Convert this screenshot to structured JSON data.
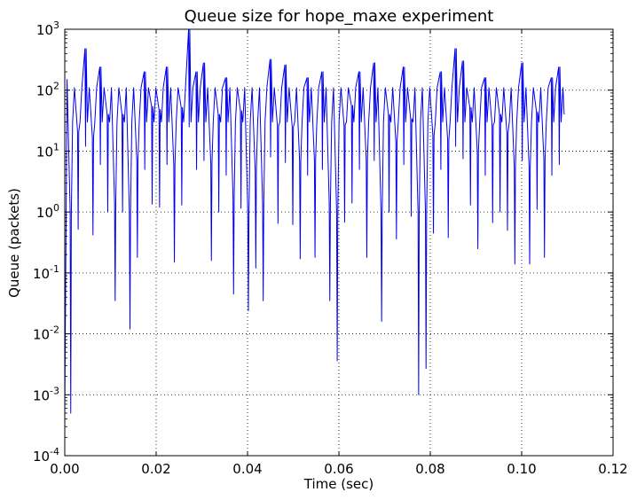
{
  "chart_data": {
    "type": "line",
    "title": "Queue size for hope_maxe experiment",
    "xlabel": "Time (sec)",
    "ylabel": "Queue (packets)",
    "xlim": [
      0,
      0.12
    ],
    "ylim": [
      0.0001,
      1000
    ],
    "yscale": "log",
    "grid": true,
    "line_color": "#0000ee",
    "x_ticks": [
      {
        "value": 0.0,
        "label": "0.00"
      },
      {
        "value": 0.02,
        "label": "0.02"
      },
      {
        "value": 0.04,
        "label": "0.04"
      },
      {
        "value": 0.06,
        "label": "0.06"
      },
      {
        "value": 0.08,
        "label": "0.08"
      },
      {
        "value": 0.1,
        "label": "0.10"
      },
      {
        "value": 0.12,
        "label": "0.12"
      }
    ],
    "y_ticks": [
      {
        "value": 0.0001,
        "base": "10",
        "exp": "-4"
      },
      {
        "value": 0.001,
        "base": "10",
        "exp": "-3"
      },
      {
        "value": 0.01,
        "base": "10",
        "exp": "-2"
      },
      {
        "value": 0.1,
        "base": "10",
        "exp": "-1"
      },
      {
        "value": 1,
        "base": "10",
        "exp": "0"
      },
      {
        "value": 10,
        "base": "10",
        "exp": "1"
      },
      {
        "value": 100,
        "base": "10",
        "exp": "2"
      },
      {
        "value": 1000,
        "base": "10",
        "exp": "3"
      }
    ],
    "series": [
      {
        "x_start": 0.0,
        "x_end": 0.1093,
        "start_value": 0.0005,
        "peak_value": 150,
        "typical_peak": 110,
        "cycle_period": 0.00162,
        "first_peak_time": 0.0005,
        "end_value": 40,
        "minima": [
          0.0005,
          0.52,
          12,
          0.42,
          6,
          1.0,
          0.035,
          1.0,
          0.012,
          0.18,
          5,
          1.35,
          1.2,
          6,
          0.15,
          1.3,
          25,
          5,
          7,
          0.16,
          1.0,
          4,
          0.045,
          1.15,
          0.024,
          0.12,
          0.035,
          8,
          0.65,
          6.5,
          0.62,
          0.17,
          4,
          0.18,
          5,
          0.035,
          0.0036,
          0.68,
          1.4,
          5,
          0.18,
          7,
          0.016,
          1.0,
          0.36,
          6,
          0.85,
          0.001,
          0.0027,
          0.45,
          5,
          0.38,
          12,
          7.5,
          1.3,
          0.25,
          4,
          0.67,
          1.0,
          0.5,
          0.14,
          7,
          0.14,
          1.1,
          0.18,
          4,
          6,
          0.095,
          0.7,
          0.45,
          8,
          0.0055,
          0.12,
          1.0,
          0.12,
          0.058,
          3,
          1.0,
          0.065,
          12,
          0.12,
          5,
          0.035,
          0.68,
          0.12,
          3,
          0.0035
        ]
      }
    ]
  }
}
